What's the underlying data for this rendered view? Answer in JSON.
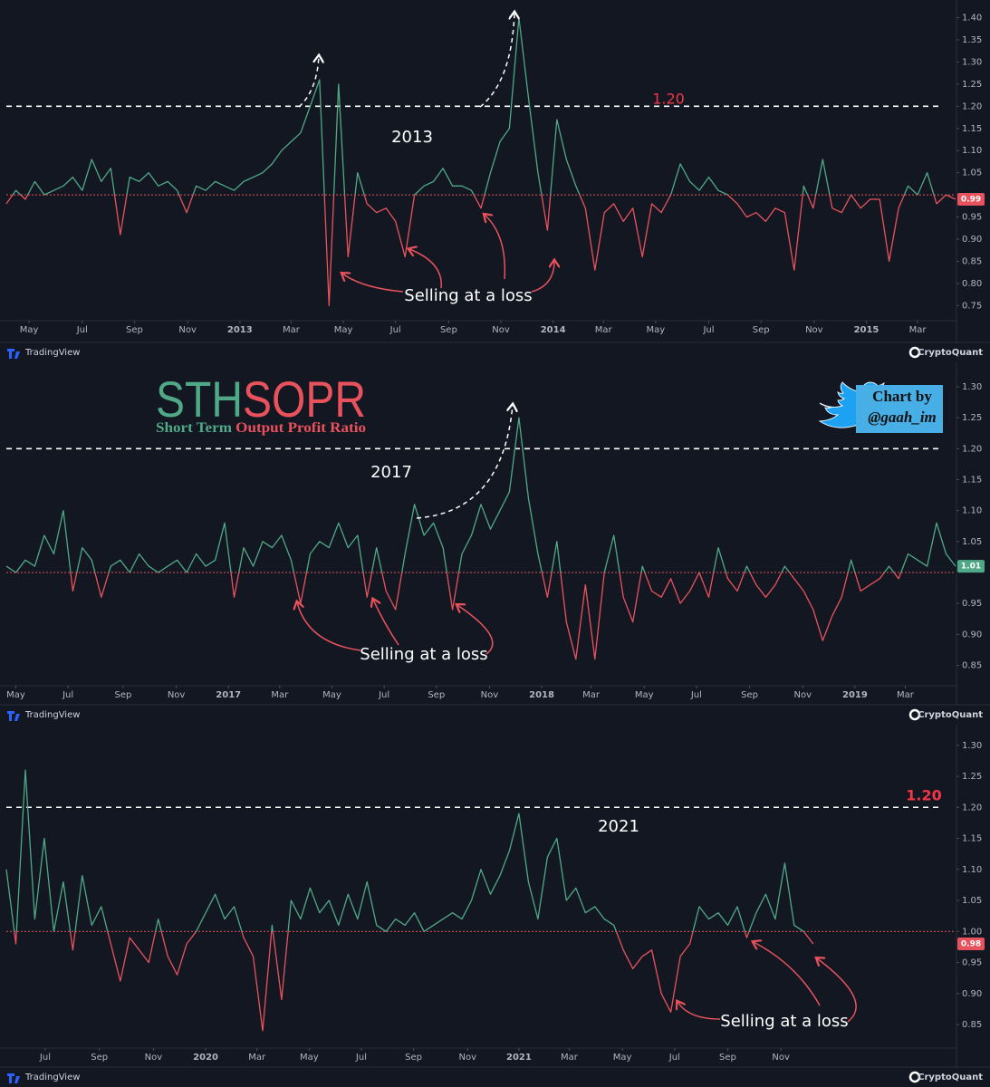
{
  "chart_data": [
    {
      "type": "line",
      "period_label": "2013",
      "note": "Selling at a loss",
      "reference_line": 1.2,
      "reference_label": "1.20",
      "baseline": 1,
      "last_value": {
        "value": 0.99,
        "label": "0.99"
      },
      "color_up": "#4fa886",
      "color_down": "#e8525c",
      "xlim": [
        0,
        100
      ],
      "ylim": [
        0.72,
        1.44
      ],
      "xticks": [
        {
          "value": 2.4,
          "label": "May"
        },
        {
          "value": 8.0,
          "label": "Jul"
        },
        {
          "value": 13.5,
          "label": "Sep"
        },
        {
          "value": 19.1,
          "label": "Nov"
        },
        {
          "value": 24.6,
          "label": "2013"
        },
        {
          "value": 30.0,
          "label": "Mar"
        },
        {
          "value": 35.5,
          "label": "May"
        },
        {
          "value": 41.0,
          "label": "Jul"
        },
        {
          "value": 46.6,
          "label": "Sep"
        },
        {
          "value": 52.1,
          "label": "Nov"
        },
        {
          "value": 57.6,
          "label": "2014"
        },
        {
          "value": 62.9,
          "label": "Mar"
        },
        {
          "value": 68.4,
          "label": "May"
        },
        {
          "value": 74.0,
          "label": "Jul"
        },
        {
          "value": 79.5,
          "label": "Sep"
        },
        {
          "value": 85.1,
          "label": "Nov"
        },
        {
          "value": 90.6,
          "label": "2015"
        },
        {
          "value": 96.0,
          "label": "Mar"
        }
      ],
      "yticks": [
        0.75,
        {
          "value": 0.8,
          "label": "0.80"
        },
        0.85,
        {
          "value": 0.9,
          "label": "0.90"
        },
        0.95,
        1.05,
        {
          "value": 1.1,
          "label": "1.10"
        },
        1.15,
        {
          "value": 1.2,
          "label": "1.20"
        },
        1.25,
        {
          "value": 1.3,
          "label": "1.30"
        },
        1.35,
        {
          "value": 1.4,
          "label": "1.40"
        }
      ],
      "values": [
        0.98,
        1.01,
        0.99,
        1.03,
        1,
        1.01,
        1.02,
        1.04,
        1.01,
        1.08,
        1.03,
        1.06,
        0.91,
        1.04,
        1.03,
        1.05,
        1.02,
        1.03,
        1.01,
        0.96,
        1.02,
        1.01,
        1.03,
        1.02,
        1.01,
        1.03,
        1.04,
        1.05,
        1.07,
        1.1,
        1.12,
        1.14,
        1.2,
        1.26,
        0.75,
        1.25,
        0.86,
        1.05,
        0.98,
        0.96,
        0.97,
        0.94,
        0.86,
        1,
        1.02,
        1.03,
        1.06,
        1.02,
        1.02,
        1.01,
        0.97,
        1.05,
        1.12,
        1.15,
        1.4,
        1.22,
        1.05,
        0.92,
        1.17,
        1.08,
        1.02,
        0.97,
        0.83,
        0.96,
        0.98,
        0.94,
        0.97,
        0.86,
        0.98,
        0.96,
        1,
        1.07,
        1.03,
        1.01,
        1.04,
        1.01,
        1,
        0.98,
        0.95,
        0.96,
        0.94,
        0.97,
        0.96,
        0.83,
        1.02,
        0.97,
        1.08,
        0.97,
        0.96,
        1,
        0.97,
        0.99,
        0.99,
        0.85,
        0.97,
        1.02,
        1,
        1.05,
        0.98,
        1,
        0.99
      ]
    },
    {
      "type": "line",
      "title_parts": [
        "STH",
        "SOPR"
      ],
      "subtitle_parts": [
        "Short Term",
        "Output Profit Ratio"
      ],
      "credit": [
        "Chart by",
        "@gaah_im"
      ],
      "period_label": "2017",
      "note": "Selling at a loss",
      "reference_line": 1.2,
      "baseline": 1,
      "last_value": {
        "value": 1.01,
        "label": "1.01"
      },
      "color_up": "#4fa886",
      "color_down": "#e8525c",
      "xlim": [
        0,
        100
      ],
      "ylim": [
        0.82,
        1.335
      ],
      "xticks": [
        {
          "value": 1.0,
          "label": "May"
        },
        {
          "value": 6.5,
          "label": "Jul"
        },
        {
          "value": 12.3,
          "label": "Sep"
        },
        {
          "value": 17.9,
          "label": "Nov"
        },
        {
          "value": 23.4,
          "label": "2017"
        },
        {
          "value": 28.8,
          "label": "Mar"
        },
        {
          "value": 34.3,
          "label": "May"
        },
        {
          "value": 39.8,
          "label": "Jul"
        },
        {
          "value": 45.3,
          "label": "Sep"
        },
        {
          "value": 50.9,
          "label": "Nov"
        },
        {
          "value": 56.4,
          "label": "2018"
        },
        {
          "value": 61.6,
          "label": "Mar"
        },
        {
          "value": 67.2,
          "label": "May"
        },
        {
          "value": 72.7,
          "label": "Jul"
        },
        {
          "value": 78.3,
          "label": "Sep"
        },
        {
          "value": 83.9,
          "label": "Nov"
        },
        {
          "value": 89.4,
          "label": "2019"
        },
        {
          "value": 94.7,
          "label": "Mar"
        }
      ],
      "yticks": [
        0.85,
        {
          "value": 0.9,
          "label": "0.90"
        },
        0.95,
        1.05,
        {
          "value": 1.1,
          "label": "1.10"
        },
        1.15,
        {
          "value": 1.2,
          "label": "1.20"
        },
        1.25,
        {
          "value": 1.3,
          "label": "1.30"
        }
      ],
      "values": [
        1.01,
        1,
        1.02,
        1.01,
        1.06,
        1.03,
        1.1,
        0.97,
        1.04,
        1.02,
        0.96,
        1.01,
        1.02,
        1,
        1.03,
        1.01,
        1,
        1.01,
        1.02,
        1,
        1.03,
        1.01,
        1.02,
        1.08,
        0.96,
        1.04,
        1.01,
        1.05,
        1.04,
        1.06,
        1.02,
        0.95,
        1.03,
        1.05,
        1.04,
        1.08,
        1.04,
        1.06,
        0.96,
        1.04,
        0.97,
        0.94,
        1.03,
        1.11,
        1.06,
        1.08,
        1.04,
        0.94,
        1.03,
        1.06,
        1.11,
        1.07,
        1.1,
        1.13,
        1.25,
        1.12,
        1.03,
        0.96,
        1.05,
        0.92,
        0.86,
        0.98,
        0.86,
        1,
        1.06,
        0.96,
        0.92,
        1.01,
        0.97,
        0.96,
        0.99,
        0.95,
        0.97,
        1,
        0.96,
        1.04,
        0.99,
        0.97,
        1.01,
        0.98,
        0.96,
        0.98,
        1.01,
        0.99,
        0.97,
        0.94,
        0.89,
        0.93,
        0.96,
        1.02,
        0.97,
        0.98,
        0.99,
        1.01,
        0.99,
        1.03,
        1.02,
        1.01,
        1.08,
        1.03,
        1.01
      ]
    },
    {
      "type": "line",
      "period_label": "2021",
      "note": "Selling at a loss",
      "reference_line": 1.2,
      "reference_label": "1.20",
      "baseline": 1,
      "last_value": {
        "value": 0.98,
        "label": "0.98"
      },
      "color_up": "#4fa886",
      "color_down": "#e8525c",
      "xlim": [
        0,
        100
      ],
      "ylim": [
        0.815,
        1.323
      ],
      "xticks": [
        {
          "value": 4.1,
          "label": "Jul"
        },
        {
          "value": 9.8,
          "label": "Sep"
        },
        {
          "value": 15.5,
          "label": "Nov"
        },
        {
          "value": 21.0,
          "label": "2020"
        },
        {
          "value": 26.4,
          "label": "Mar"
        },
        {
          "value": 31.9,
          "label": "May"
        },
        {
          "value": 37.4,
          "label": "Jul"
        },
        {
          "value": 42.9,
          "label": "Sep"
        },
        {
          "value": 48.6,
          "label": "Nov"
        },
        {
          "value": 54.0,
          "label": "2021"
        },
        {
          "value": 59.3,
          "label": "Mar"
        },
        {
          "value": 64.9,
          "label": "May"
        },
        {
          "value": 70.4,
          "label": "Jul"
        },
        {
          "value": 76.0,
          "label": "Sep"
        },
        {
          "value": 81.6,
          "label": "Nov"
        }
      ],
      "yticks": [
        0.85,
        {
          "value": 0.9,
          "label": "0.90"
        },
        0.95,
        {
          "value": 1,
          "label": "1.00"
        },
        1.05,
        {
          "value": 1.1,
          "label": "1.10"
        },
        1.15,
        {
          "value": 1.2,
          "label": "1.20"
        },
        1.25,
        {
          "value": 1.3,
          "label": "1.30"
        }
      ],
      "values": [
        1.1,
        0.98,
        1.26,
        1.02,
        1.15,
        1,
        1.08,
        0.97,
        1.09,
        1.01,
        1.04,
        0.98,
        0.92,
        0.99,
        0.97,
        0.95,
        1.02,
        0.96,
        0.93,
        0.98,
        1,
        1.03,
        1.06,
        1.02,
        1.04,
        0.99,
        0.96,
        0.84,
        1.01,
        0.89,
        1.05,
        1.02,
        1.07,
        1.03,
        1.05,
        1.01,
        1.06,
        1.02,
        1.08,
        1.01,
        1,
        1.02,
        1.01,
        1.03,
        1,
        1.01,
        1.02,
        1.03,
        1.02,
        1.05,
        1.1,
        1.06,
        1.09,
        1.13,
        1.19,
        1.08,
        1.02,
        1.12,
        1.15,
        1.05,
        1.07,
        1.03,
        1.04,
        1.02,
        1.01,
        0.97,
        0.94,
        0.96,
        0.97,
        0.9,
        0.87,
        0.96,
        0.98,
        1.04,
        1.02,
        1.03,
        1.01,
        1.04,
        0.99,
        1.03,
        1.06,
        1.02,
        1.11,
        1.01,
        1,
        0.98
      ]
    }
  ],
  "branding": {
    "left": "TradingView",
    "right": "CryptoQuant"
  }
}
